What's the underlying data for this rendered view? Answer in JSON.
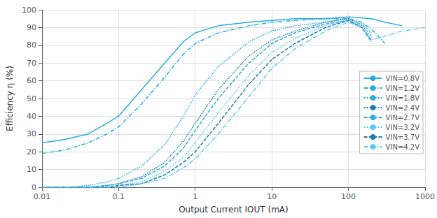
{
  "chart_data": {
    "type": "line",
    "xlabel": "Output Current IOUT (mA)",
    "ylabel": "Efficiency η (%)",
    "log": "x",
    "xlim": [
      0.01,
      1000
    ],
    "ylim": [
      0,
      100
    ],
    "xticks": [
      0.01,
      0.1,
      1,
      10,
      100,
      1000
    ],
    "yticks": [
      0,
      10,
      20,
      30,
      40,
      50,
      60,
      70,
      80,
      90,
      100
    ],
    "grid": true,
    "legend": "right",
    "series": [
      {
        "name": "VIN=0.8V",
        "color": "#29abe2",
        "line_style": "solid",
        "x": [
          0.01,
          0.02,
          0.04,
          0.07,
          0.1,
          0.2,
          0.4,
          0.7,
          1,
          2,
          5,
          10,
          20,
          50,
          100,
          200,
          300,
          500
        ],
        "values": [
          25,
          27,
          30,
          36,
          40,
          55,
          70,
          82,
          87,
          91,
          93,
          94,
          95,
          95,
          96,
          95,
          93,
          91
        ]
      },
      {
        "name": "VIN=1.2V",
        "color": "#29abe2",
        "line_style": "dashdot",
        "x": [
          0.01,
          0.02,
          0.04,
          0.07,
          0.1,
          0.2,
          0.4,
          0.7,
          1,
          2,
          5,
          10,
          20,
          50,
          100,
          150,
          200,
          300
        ],
        "values": [
          19,
          21,
          25,
          30,
          34,
          47,
          62,
          75,
          81,
          87,
          91,
          93,
          94,
          95,
          95,
          93,
          89,
          81
        ]
      },
      {
        "name": "VIN=1.8V",
        "color": "#29abe2",
        "line_style": "dotted",
        "x": [
          0.01,
          0.02,
          0.04,
          0.07,
          0.1,
          0.2,
          0.4,
          0.7,
          1,
          2,
          5,
          10,
          20,
          50,
          100,
          150,
          200
        ],
        "values": [
          0,
          0,
          1,
          3,
          5,
          12,
          24,
          40,
          52,
          68,
          82,
          88,
          91,
          93,
          95,
          92,
          87
        ]
      },
      {
        "name": "VIN=2.4V",
        "color": "#1a7ab5",
        "line_style": "dotted",
        "x": [
          0.01,
          0.02,
          0.04,
          0.07,
          0.1,
          0.2,
          0.4,
          0.7,
          1,
          2,
          5,
          10,
          20,
          50,
          100,
          150,
          200
        ],
        "values": [
          0,
          0,
          0,
          1,
          2,
          6,
          14,
          26,
          36,
          55,
          74,
          83,
          88,
          93,
          95,
          91,
          85
        ]
      },
      {
        "name": "VIN=2.7V",
        "color": "#29abe2",
        "line_style": "dashed",
        "x": [
          0.01,
          0.02,
          0.04,
          0.07,
          0.1,
          0.2,
          0.4,
          0.7,
          1,
          2,
          5,
          10,
          20,
          50,
          100,
          150,
          200
        ],
        "values": [
          0,
          0,
          0,
          1,
          2,
          5,
          12,
          22,
          32,
          50,
          70,
          81,
          87,
          92,
          94,
          90,
          83
        ]
      },
      {
        "name": "VIN=3.2V",
        "color": "#5bc8f5",
        "line_style": "dotted",
        "x": [
          0.01,
          0.02,
          0.04,
          0.07,
          0.1,
          0.2,
          0.4,
          0.7,
          1,
          2,
          5,
          10,
          20,
          50,
          100,
          150,
          200
        ],
        "values": [
          0,
          0,
          0,
          0,
          1,
          3,
          9,
          17,
          25,
          42,
          63,
          76,
          84,
          91,
          94,
          90,
          83
        ]
      },
      {
        "name": "VIN=3.7V",
        "color": "#1a7ab5",
        "line_style": "dashed",
        "x": [
          0.01,
          0.02,
          0.04,
          0.07,
          0.1,
          0.2,
          0.4,
          0.7,
          1,
          2,
          5,
          10,
          20,
          50,
          100,
          150,
          200
        ],
        "values": [
          0,
          0,
          0,
          0,
          1,
          2,
          7,
          14,
          20,
          36,
          58,
          72,
          81,
          90,
          94,
          90,
          82
        ]
      },
      {
        "name": "VIN=4.2V",
        "color": "#5bc8f5",
        "line_style": "dashdot",
        "x": [
          0.01,
          0.02,
          0.04,
          0.07,
          0.1,
          0.2,
          0.4,
          0.7,
          1,
          2,
          5,
          10,
          20,
          50,
          100,
          150,
          200,
          500,
          1000
        ],
        "values": [
          0,
          0,
          0,
          0,
          0,
          2,
          5,
          11,
          16,
          30,
          51,
          67,
          78,
          88,
          93,
          90,
          83,
          88,
          90
        ]
      }
    ]
  }
}
